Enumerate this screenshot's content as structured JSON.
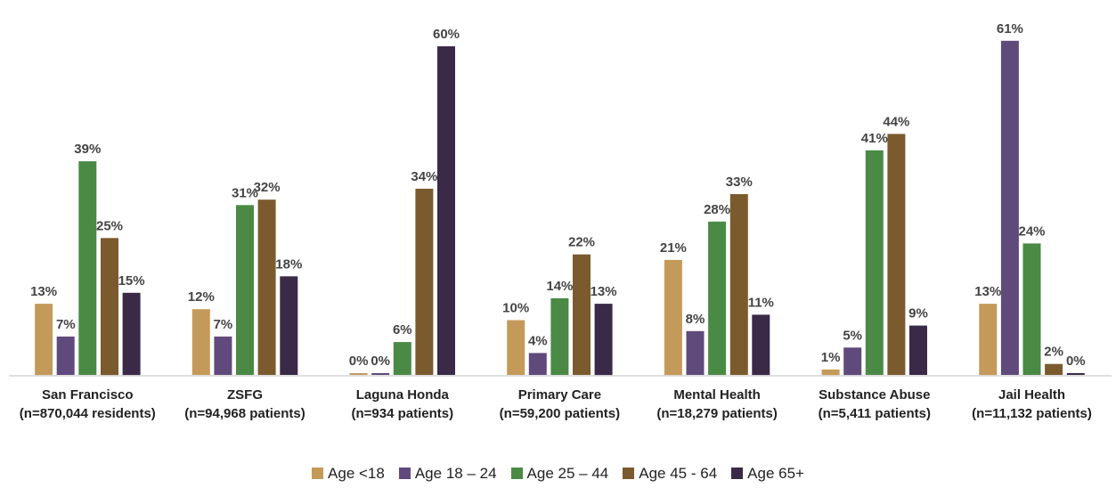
{
  "chart_data": {
    "type": "bar",
    "categories": [
      [
        "San Francisco",
        "(n=870,044 residents)"
      ],
      [
        "ZSFG",
        "(n=94,968 patients)"
      ],
      [
        "Laguna Honda",
        "(n=934 patients)"
      ],
      [
        "Primary Care",
        "(n=59,200 patients)"
      ],
      [
        "Mental Health",
        "(n=18,279 patients)"
      ],
      [
        "Substance Abuse",
        "(n=5,411 patients)"
      ],
      [
        "Jail Health",
        "(n=11,132 patients)"
      ]
    ],
    "series": [
      {
        "name": "Age <18",
        "color": "#C49A5A",
        "values": [
          13,
          12,
          0,
          10,
          21,
          1,
          13
        ]
      },
      {
        "name": "Age 18 – 24",
        "color": "#604A7B",
        "values": [
          7,
          7,
          0,
          4,
          8,
          5,
          61
        ]
      },
      {
        "name": "Age 25 – 44",
        "color": "#4A8A45",
        "values": [
          39,
          31,
          6,
          14,
          28,
          41,
          24
        ]
      },
      {
        "name": "Age 45 - 64",
        "color": "#7B5A2E",
        "values": [
          25,
          32,
          34,
          22,
          33,
          44,
          2
        ]
      },
      {
        "name": "Age 65+",
        "color": "#3A2A48",
        "values": [
          15,
          18,
          60,
          13,
          11,
          9,
          0
        ]
      }
    ],
    "value_suffix": "%",
    "ylim": [
      0,
      62
    ],
    "grid": false,
    "legend_position": "bottom"
  }
}
